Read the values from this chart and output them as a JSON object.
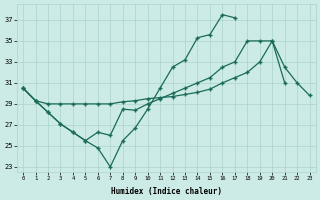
{
  "xlabel": "Humidex (Indice chaleur)",
  "xlim": [
    -0.5,
    23.5
  ],
  "ylim": [
    22.5,
    38.5
  ],
  "xtick_labels": [
    "0",
    "1",
    "2",
    "3",
    "4",
    "5",
    "6",
    "7",
    "8",
    "9",
    "10",
    "11",
    "12",
    "13",
    "14",
    "15",
    "16",
    "17",
    "18",
    "19",
    "20",
    "21",
    "22",
    "23"
  ],
  "ytick_values": [
    23,
    25,
    27,
    29,
    31,
    33,
    35,
    37
  ],
  "bg_color": "#cceae6",
  "grid_color": "#aad4cc",
  "line_color": "#1a6b5a",
  "line1_y": [
    30.5,
    29.3,
    28.2,
    27.1,
    26.3,
    25.5,
    24.8,
    23.0,
    25.5,
    26.7,
    28.5,
    30.5,
    32.5,
    33.2,
    35.3,
    35.6,
    37.5,
    37.2,
    null,
    null,
    null,
    null,
    null,
    null
  ],
  "line2_y": [
    30.5,
    29.3,
    28.2,
    27.1,
    26.3,
    25.5,
    26.3,
    26.0,
    28.5,
    28.4,
    29.0,
    29.5,
    30.0,
    30.5,
    31.0,
    31.5,
    32.5,
    33.0,
    35.0,
    35.0,
    35.0,
    31.0,
    null,
    null
  ],
  "line3_y": [
    30.5,
    29.3,
    29.0,
    29.0,
    29.0,
    29.0,
    29.0,
    29.0,
    29.2,
    29.3,
    29.5,
    29.6,
    29.7,
    29.9,
    30.1,
    30.4,
    31.0,
    31.5,
    32.0,
    33.0,
    35.0,
    32.5,
    31.0,
    29.8
  ]
}
